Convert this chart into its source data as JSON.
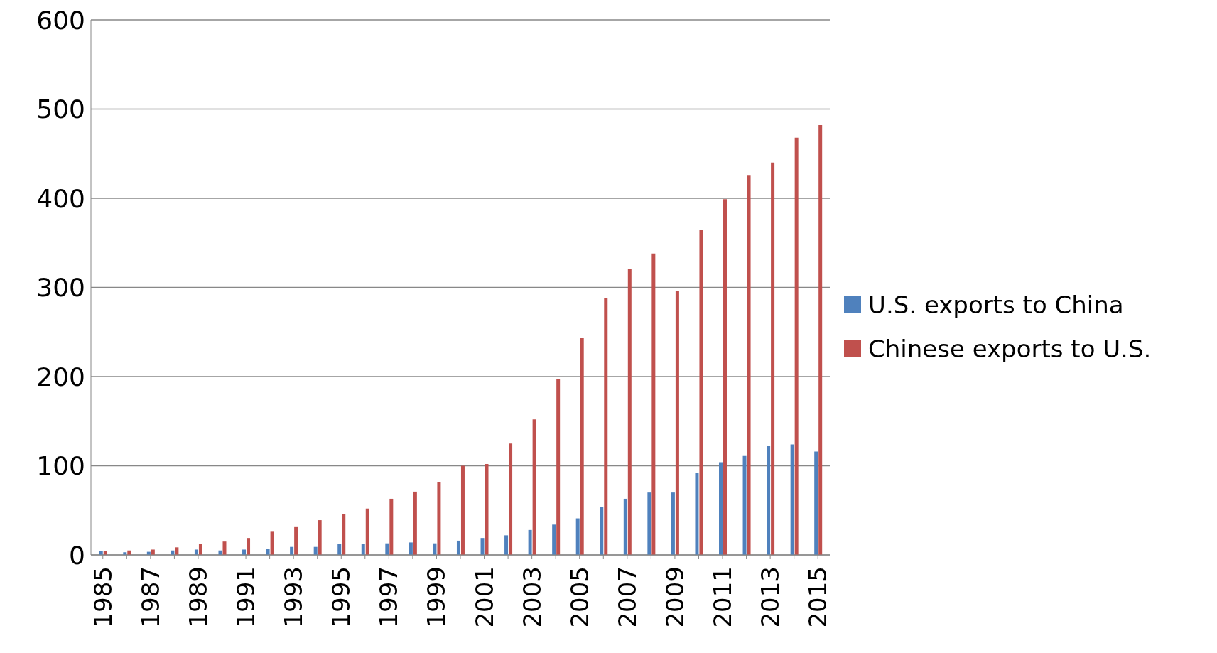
{
  "chart_data": {
    "type": "bar",
    "categories": [
      "1985",
      null,
      "1987",
      null,
      "1989",
      null,
      "1991",
      null,
      "1993",
      null,
      "1995",
      null,
      "1997",
      null,
      "1999",
      null,
      "2001",
      null,
      "2003",
      null,
      "2005",
      null,
      "2007",
      null,
      "2009",
      null,
      "2011",
      null,
      "2013",
      null,
      "2015"
    ],
    "series": [
      {
        "name": "U.S. exports to China",
        "color": "#4f81bd",
        "values": [
          4,
          3,
          3.5,
          5,
          6,
          5,
          6,
          7,
          9,
          9,
          12,
          12,
          13,
          14,
          13,
          16,
          19,
          22,
          28,
          34,
          41,
          54,
          63,
          70,
          70,
          92,
          104,
          111,
          122,
          124,
          116
        ]
      },
      {
        "name": "Chinese exports to U.S.",
        "color": "#c0504d",
        "values": [
          4,
          5,
          6,
          8.5,
          12,
          15,
          19,
          26,
          32,
          39,
          46,
          52,
          63,
          71,
          82,
          100,
          102,
          125,
          152,
          197,
          243,
          288,
          321,
          338,
          296,
          365,
          399,
          426,
          440,
          468,
          482
        ]
      }
    ],
    "ylim": [
      0,
      600
    ],
    "yticks": [
      0,
      100,
      200,
      300,
      400,
      500,
      600
    ],
    "grid": "y",
    "legend": "right"
  }
}
